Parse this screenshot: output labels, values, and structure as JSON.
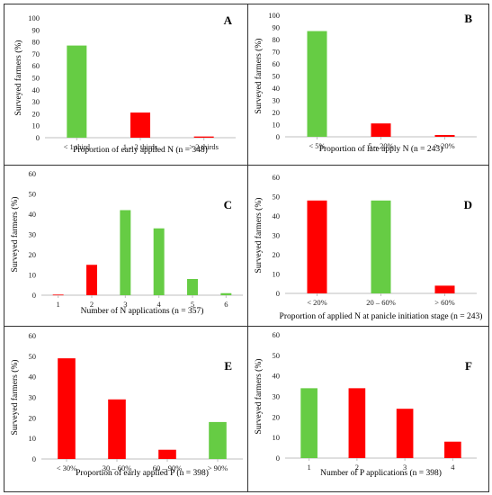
{
  "colors": {
    "green": "#66cc44",
    "red": "#ff0000",
    "axis": "#bfbfbf",
    "border": "#333333"
  },
  "ylabel": "Surveyed farmers (%)",
  "chart_data": [
    {
      "panel": "A",
      "type": "bar",
      "xlabel": "Proportion of early applied N (n = 348)",
      "categories": [
        "< 1 third",
        "1 – 2 thirds",
        "> 2 thirds"
      ],
      "values": [
        77,
        21,
        1
      ],
      "bar_colors": [
        "green",
        "red",
        "red"
      ],
      "ylim": [
        0,
        100
      ],
      "ystep": 10
    },
    {
      "panel": "B",
      "type": "bar",
      "xlabel": "Proportion of late apply N (n = 243)",
      "categories": [
        "< 5%",
        "5 – 20%",
        "> 20%"
      ],
      "values": [
        87,
        11,
        1.5
      ],
      "bar_colors": [
        "green",
        "red",
        "red"
      ],
      "ylim": [
        0,
        100
      ],
      "ystep": 10
    },
    {
      "panel": "C",
      "type": "bar",
      "xlabel": "Number of N applications (n = 357)",
      "categories": [
        "1",
        "2",
        "3",
        "4",
        "5",
        "6"
      ],
      "values": [
        0.3,
        15,
        42,
        33,
        8,
        1
      ],
      "bar_colors": [
        "red",
        "red",
        "green",
        "green",
        "green",
        "green"
      ],
      "ylim": [
        0,
        60
      ],
      "ystep": 10
    },
    {
      "panel": "D",
      "type": "bar",
      "xlabel": "Proportion of applied N at panicle initiation stage (n = 243)",
      "categories": [
        "< 20%",
        "20 – 60%",
        "> 60%"
      ],
      "values": [
        48,
        48,
        4
      ],
      "bar_colors": [
        "red",
        "green",
        "red"
      ],
      "ylim": [
        0,
        60
      ],
      "ystep": 10
    },
    {
      "panel": "E",
      "type": "bar",
      "xlabel": "Proportion of early applied  P (n = 398)",
      "categories": [
        "< 30%",
        "30 – 60%",
        "60 – 90%",
        "> 90%"
      ],
      "values": [
        49,
        29,
        4.5,
        18
      ],
      "bar_colors": [
        "red",
        "red",
        "red",
        "green"
      ],
      "ylim": [
        0,
        60
      ],
      "ystep": 10
    },
    {
      "panel": "F",
      "type": "bar",
      "xlabel": "Number of P applications (n = 398)",
      "categories": [
        "1",
        "2",
        "3",
        "4"
      ],
      "values": [
        34,
        34,
        24,
        8
      ],
      "bar_colors": [
        "green",
        "red",
        "red",
        "red"
      ],
      "ylim": [
        0,
        60
      ],
      "ystep": 10
    }
  ]
}
